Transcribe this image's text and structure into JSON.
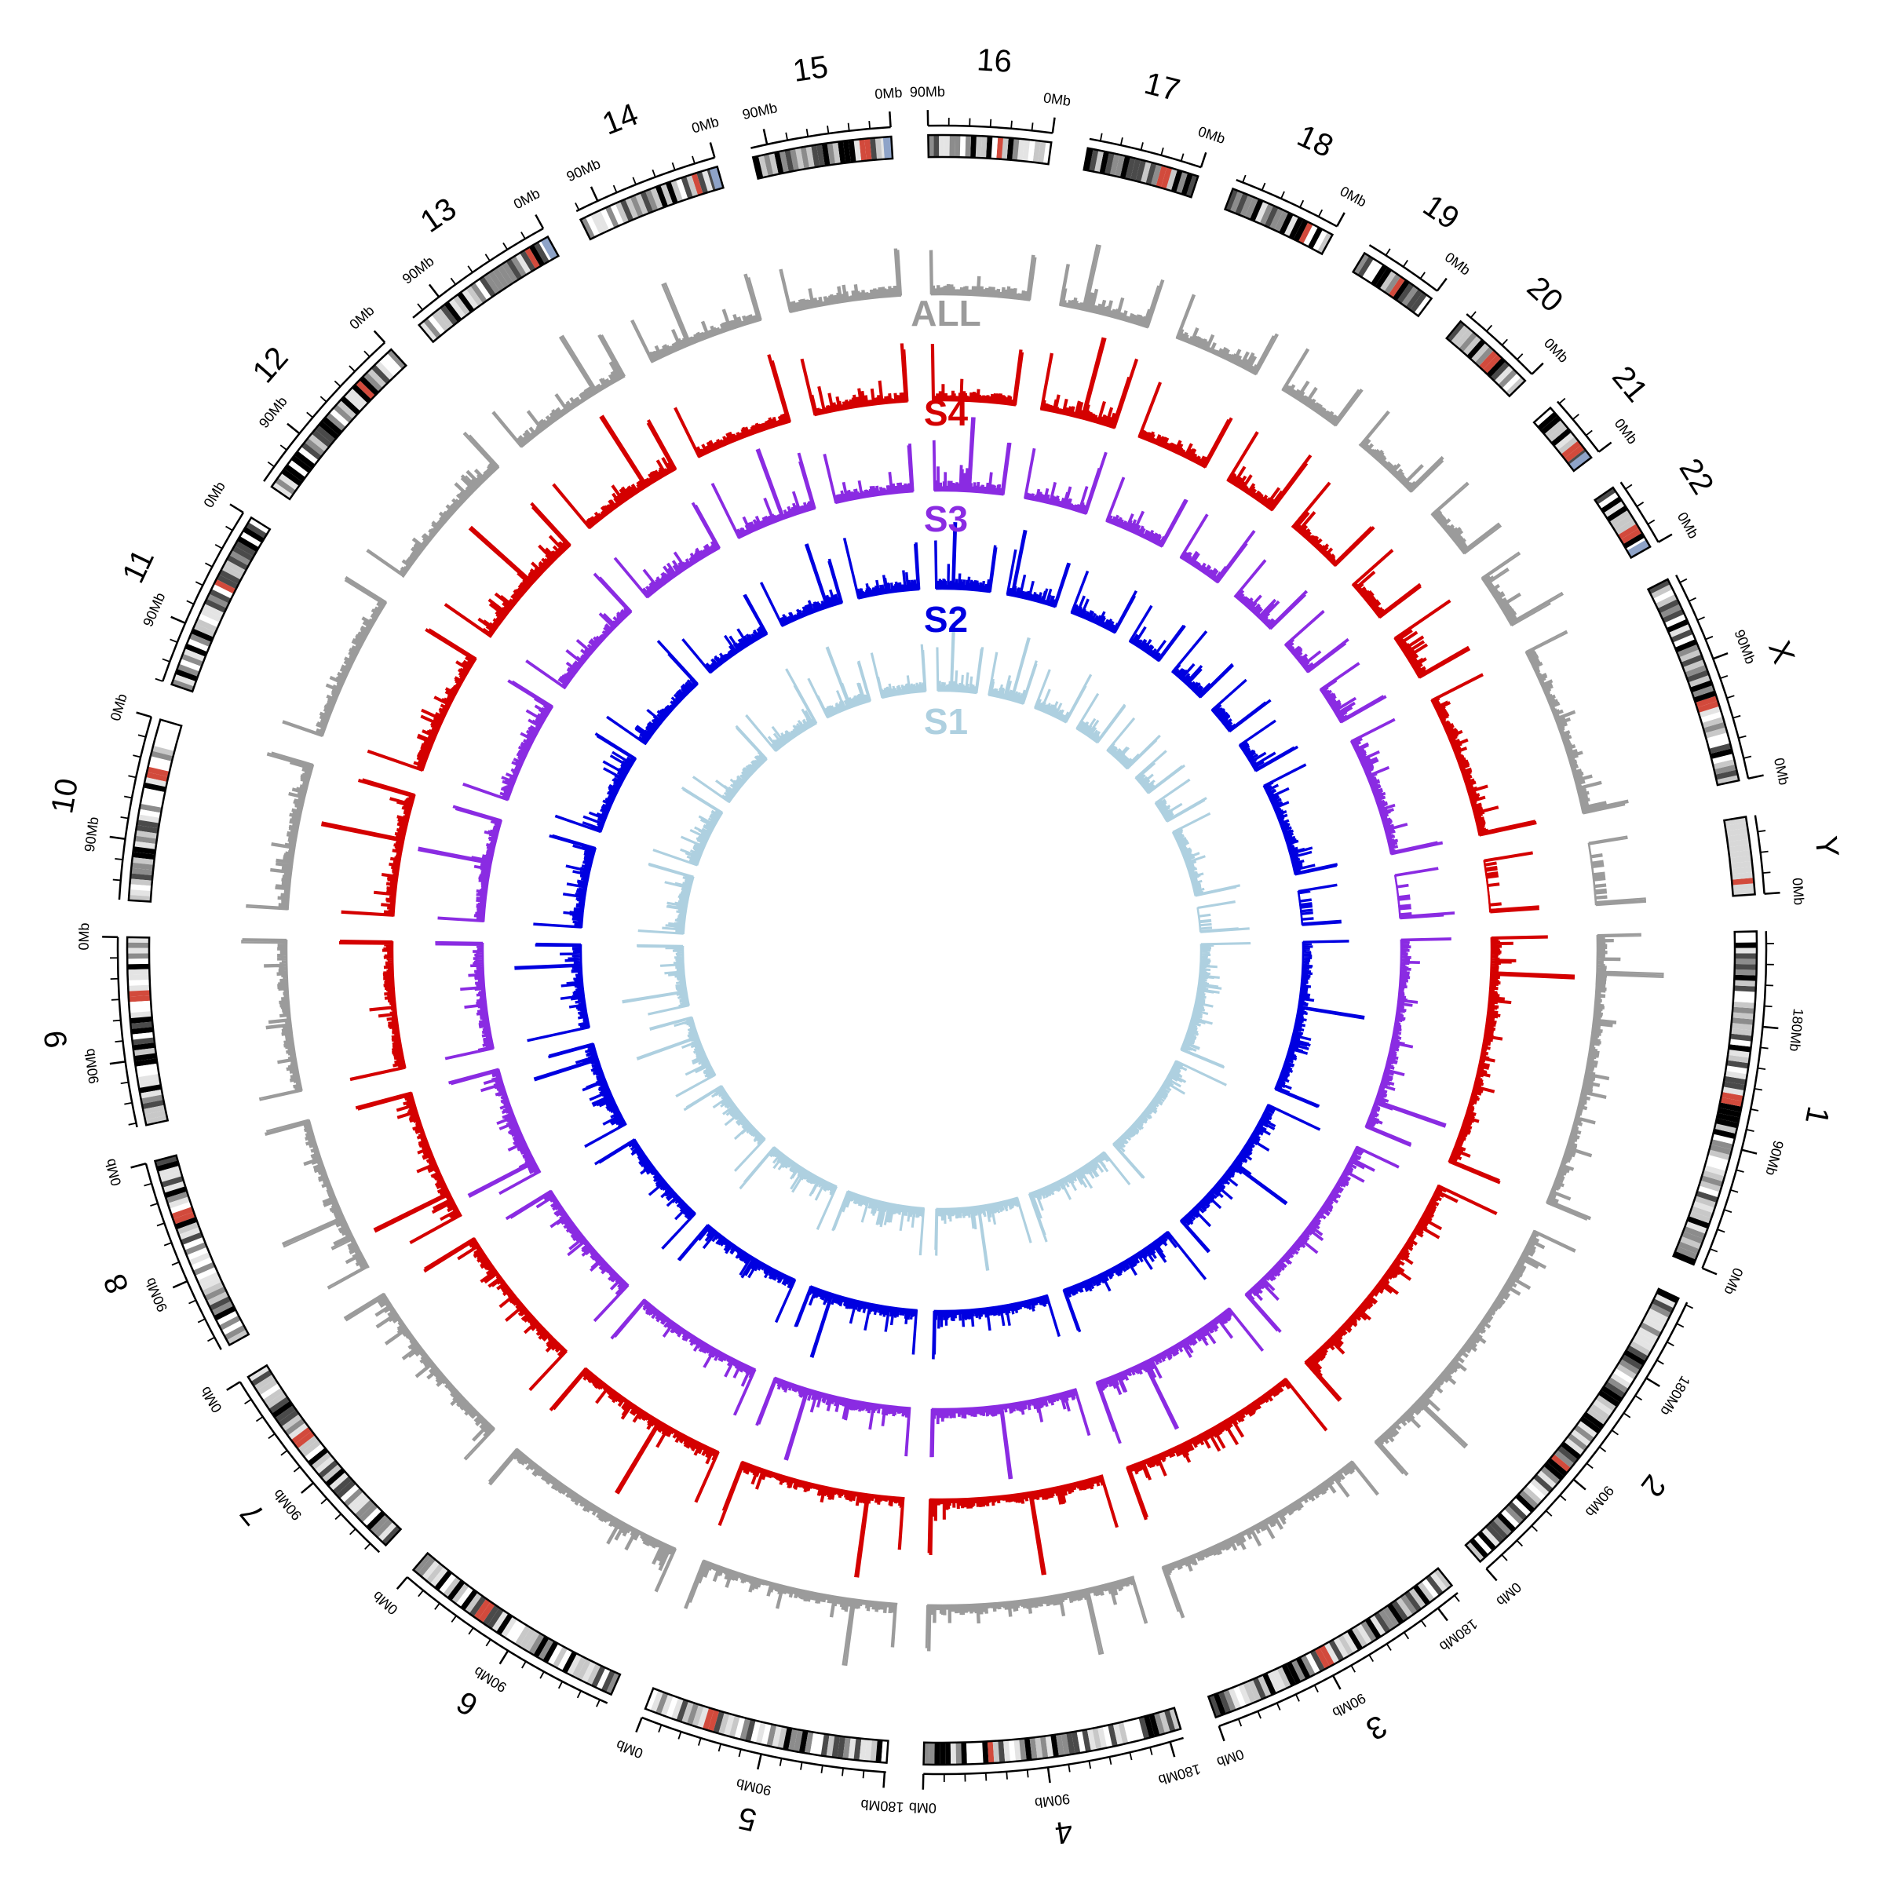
{
  "chart_data": {
    "type": "circos",
    "chromosomes": [
      {
        "name": "1",
        "size_mb": 249,
        "centromere_mb": 125,
        "tick_labels": [
          "0Mb",
          "90Mb",
          "180Mb"
        ]
      },
      {
        "name": "2",
        "size_mb": 242,
        "centromere_mb": 93,
        "tick_labels": [
          "0Mb",
          "90Mb",
          "180Mb"
        ]
      },
      {
        "name": "3",
        "size_mb": 198,
        "centromere_mb": 91,
        "tick_labels": [
          "0Mb",
          "90Mb",
          "180Mb"
        ]
      },
      {
        "name": "4",
        "size_mb": 190,
        "centromere_mb": 50,
        "tick_labels": [
          "0Mb",
          "90Mb",
          "180Mb"
        ]
      },
      {
        "name": "5",
        "size_mb": 181,
        "centromere_mb": 48,
        "tick_labels": [
          "0Mb",
          "90Mb",
          "180Mb"
        ]
      },
      {
        "name": "6",
        "size_mb": 171,
        "centromere_mb": 60,
        "tick_labels": [
          "0Mb",
          "90Mb"
        ]
      },
      {
        "name": "7",
        "size_mb": 159,
        "centromere_mb": 60,
        "tick_labels": [
          "0Mb",
          "90Mb"
        ]
      },
      {
        "name": "8",
        "size_mb": 145,
        "centromere_mb": 45,
        "tick_labels": [
          "0Mb",
          "90Mb"
        ]
      },
      {
        "name": "9",
        "size_mb": 138,
        "centromere_mb": 43,
        "tick_labels": [
          "0Mb",
          "90Mb"
        ]
      },
      {
        "name": "10",
        "size_mb": 134,
        "centromere_mb": 40,
        "tick_labels": [
          "0Mb",
          "90Mb"
        ]
      },
      {
        "name": "11",
        "size_mb": 135,
        "centromere_mb": 53,
        "tick_labels": [
          "0Mb",
          "90Mb"
        ]
      },
      {
        "name": "12",
        "size_mb": 133,
        "centromere_mb": 35,
        "tick_labels": [
          "0Mb",
          "90Mb"
        ]
      },
      {
        "name": "13",
        "size_mb": 114,
        "centromere_mb": 17,
        "tick_labels": [
          "0Mb",
          "90Mb"
        ]
      },
      {
        "name": "14",
        "size_mb": 107,
        "centromere_mb": 17,
        "tick_labels": [
          "0Mb",
          "90Mb"
        ]
      },
      {
        "name": "15",
        "size_mb": 102,
        "centromere_mb": 19,
        "tick_labels": [
          "0Mb",
          "90Mb"
        ]
      },
      {
        "name": "16",
        "size_mb": 90,
        "centromere_mb": 36,
        "tick_labels": [
          "0Mb",
          "90Mb"
        ]
      },
      {
        "name": "17",
        "size_mb": 83,
        "centromere_mb": 24,
        "tick_labels": [
          "0Mb"
        ]
      },
      {
        "name": "18",
        "size_mb": 80,
        "centromere_mb": 17,
        "tick_labels": [
          "0Mb"
        ]
      },
      {
        "name": "19",
        "size_mb": 59,
        "centromere_mb": 26,
        "tick_labels": [
          "0Mb"
        ]
      },
      {
        "name": "20",
        "size_mb": 64,
        "centromere_mb": 28,
        "tick_labels": [
          "0Mb"
        ]
      },
      {
        "name": "21",
        "size_mb": 47,
        "centromere_mb": 12,
        "tick_labels": [
          "0Mb"
        ]
      },
      {
        "name": "22",
        "size_mb": 51,
        "centromere_mb": 15,
        "tick_labels": [
          "0Mb"
        ]
      },
      {
        "name": "X",
        "size_mb": 156,
        "centromere_mb": 60,
        "tick_labels": [
          "0Mb",
          "90Mb"
        ]
      },
      {
        "name": "Y",
        "size_mb": 57,
        "centromere_mb": 10,
        "tick_labels": [
          "0Mb"
        ]
      }
    ],
    "tracks": [
      {
        "label": "ALL",
        "color": "#9b9b9b",
        "peaks": [
          "1",
          "2",
          "4",
          "5",
          "8",
          "13",
          "14",
          "17"
        ]
      },
      {
        "label": "S4",
        "color": "#d40000",
        "peaks": [
          "1",
          "4",
          "5",
          "6",
          "8",
          "10",
          "12",
          "13",
          "17"
        ]
      },
      {
        "label": "S3",
        "color": "#8a2be2",
        "peaks": [
          "1",
          "3",
          "4",
          "5",
          "8",
          "10",
          "14",
          "16"
        ]
      },
      {
        "label": "S2",
        "color": "#0000e0",
        "peaks": [
          "1",
          "2",
          "5",
          "8",
          "9",
          "14",
          "16",
          "17"
        ]
      },
      {
        "label": "S1",
        "color": "#aed0e0",
        "peaks": [
          "4",
          "8",
          "9",
          "14",
          "16",
          "17"
        ]
      }
    ],
    "band_colors": [
      "#ffffff",
      "#e4e4e4",
      "#c8c8c8",
      "#8c8c8c",
      "#4a4a4a",
      "#000000"
    ],
    "centromere_color": "#d24a3c",
    "stalk_color": "#8ea3c8"
  }
}
